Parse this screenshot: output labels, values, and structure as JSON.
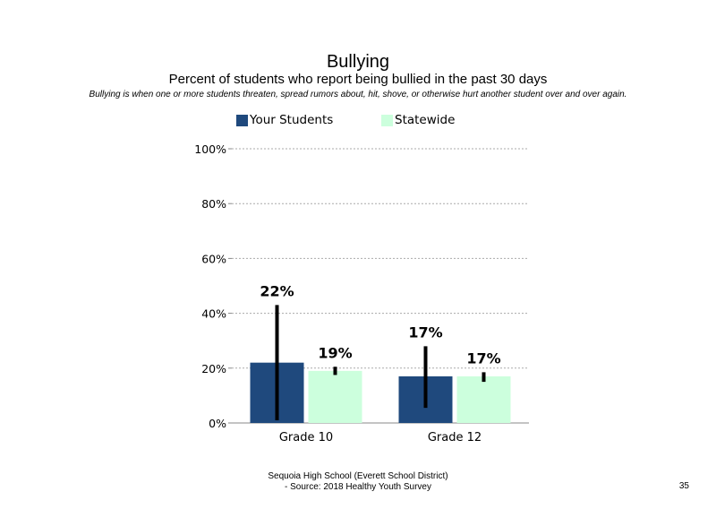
{
  "title": "Bullying",
  "subtitle": "Percent of students who report being bullied in the past 30 days",
  "note": "Bullying is when one or more students threaten, spread rumors about, hit, shove, or otherwise hurt another student over and over again.",
  "footer": {
    "line1": "Sequoia High School (Everett School District)",
    "line2": "- Source: 2018 Healthy Youth Survey"
  },
  "page_number": "35",
  "colors": {
    "your_students": "#1f497d",
    "statewide": "#ccffdd",
    "grid": "#aaaaaa",
    "axis": "#888888"
  },
  "chart_data": {
    "type": "bar",
    "title": "Bullying",
    "subtitle": "Percent of students who report being bullied in the past 30 days",
    "categories": [
      "Grade 10",
      "Grade 12"
    ],
    "ylim": [
      0,
      100
    ],
    "yticks": [
      0,
      20,
      40,
      60,
      80,
      100
    ],
    "ytick_labels": [
      "0%",
      "20%",
      "40%",
      "60%",
      "80%",
      "100%"
    ],
    "grid": true,
    "legend": "top",
    "series": [
      {
        "name": "Your Students",
        "values": [
          22,
          17
        ],
        "labels": [
          "22%",
          "17%"
        ],
        "error_low": [
          1,
          5.5
        ],
        "error_high": [
          43,
          28
        ]
      },
      {
        "name": "Statewide",
        "values": [
          19,
          17
        ],
        "labels": [
          "19%",
          "17%"
        ],
        "error_low": [
          17.5,
          15
        ],
        "error_high": [
          20.5,
          18.5
        ]
      }
    ]
  }
}
